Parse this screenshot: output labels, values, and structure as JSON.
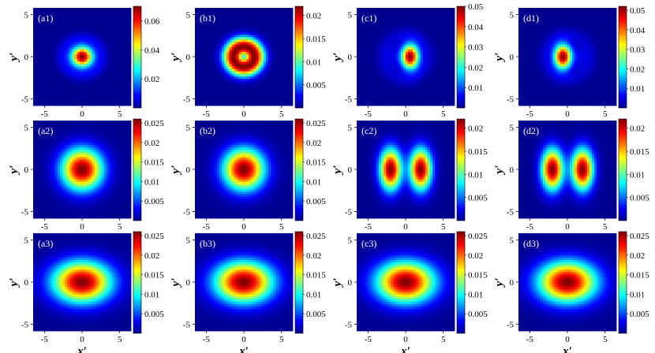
{
  "colormap": [
    "#00008f",
    "#0000ff",
    "#00ffff",
    "#ffff00",
    "#ff0000",
    "#800000"
  ],
  "axis_labels": {
    "x": "x′",
    "y": "y′"
  },
  "chart_data": [
    {
      "id": "a1",
      "label": "(a1)",
      "type": "heatmap",
      "xticks": [
        "-5",
        "0",
        "5"
      ],
      "yticks": [
        "5",
        "0",
        "-5"
      ],
      "xlim": [
        -6.5,
        6.5
      ],
      "ylim": [
        -5.8,
        5.8
      ],
      "colorbar": {
        "min": 0,
        "max": 0.07,
        "ticks": [
          "0.06",
          "0.04",
          "0.02"
        ],
        "tick_values": [
          0.06,
          0.04,
          0.02
        ]
      },
      "blobs": [
        {
          "x": 0,
          "y": 0,
          "sx": 1.0,
          "sy": 0.85,
          "shape": "gauss",
          "amp": 1.0
        },
        {
          "x": 0,
          "y": 0,
          "r0": 2.7,
          "w": 0.6,
          "ry_scale": 0.85,
          "shape": "ring",
          "amp": 0.08
        }
      ]
    },
    {
      "id": "b1",
      "label": "(b1)",
      "type": "heatmap",
      "xticks": [
        "-5",
        "0",
        "5"
      ],
      "yticks": [
        "5",
        "0",
        "-5"
      ],
      "xlim": [
        -6.5,
        6.5
      ],
      "ylim": [
        -5.8,
        5.8
      ],
      "colorbar": {
        "min": 0,
        "max": 0.022,
        "ticks": [
          "0.02",
          "0.015",
          "0.01",
          "0.005"
        ],
        "tick_values": [
          0.02,
          0.015,
          0.01,
          0.005
        ]
      },
      "blobs": [
        {
          "x": 0,
          "y": 0,
          "r0": 1.4,
          "w": 0.95,
          "ry_scale": 0.85,
          "shape": "ring",
          "amp": 1.0
        }
      ]
    },
    {
      "id": "c1",
      "label": "(c1)",
      "type": "heatmap",
      "xticks": [
        "-5",
        "0",
        "5"
      ],
      "yticks": [
        "5",
        "0",
        "-5"
      ],
      "xlim": [
        -6.5,
        6.5
      ],
      "ylim": [
        -5.8,
        5.8
      ],
      "colorbar": {
        "min": 0,
        "max": 0.05,
        "ticks": [
          "0.05",
          "0.04",
          "0.03",
          "0.02",
          "0.01"
        ],
        "tick_values": [
          0.05,
          0.04,
          0.03,
          0.02,
          0.01
        ]
      },
      "blobs": [
        {
          "x": 0.6,
          "y": 0,
          "sx": 0.8,
          "sy": 1.0,
          "shape": "gauss",
          "amp": 1.0
        },
        {
          "x": -1.6,
          "y": 0,
          "sx": 0.7,
          "sy": 0.8,
          "shape": "gauss",
          "amp": 0.07
        },
        {
          "x": 0,
          "y": 0,
          "r0": 2.9,
          "w": 0.7,
          "ry_scale": 0.9,
          "shape": "ring",
          "amp": 0.07
        }
      ]
    },
    {
      "id": "d1",
      "label": "(d1)",
      "type": "heatmap",
      "xticks": [
        "-5",
        "0",
        "5"
      ],
      "yticks": [
        "5",
        "0",
        "-5"
      ],
      "xlim": [
        -6.5,
        6.5
      ],
      "ylim": [
        -5.8,
        5.8
      ],
      "colorbar": {
        "min": 0,
        "max": 0.052,
        "ticks": [
          "0.05",
          "0.04",
          "0.03",
          "0.02",
          "0.01"
        ],
        "tick_values": [
          0.05,
          0.04,
          0.03,
          0.02,
          0.01
        ]
      },
      "blobs": [
        {
          "x": -0.6,
          "y": 0,
          "sx": 0.8,
          "sy": 1.0,
          "shape": "gauss",
          "amp": 1.0
        },
        {
          "x": 1.6,
          "y": 0,
          "sx": 0.7,
          "sy": 0.8,
          "shape": "gauss",
          "amp": 0.07
        },
        {
          "x": 0,
          "y": 0,
          "r0": 2.9,
          "w": 0.7,
          "ry_scale": 0.9,
          "shape": "ring",
          "amp": 0.07
        }
      ]
    },
    {
      "id": "a2",
      "label": "(a2)",
      "type": "heatmap",
      "xticks": [
        "-5",
        "0",
        "5"
      ],
      "yticks": [
        "5",
        "0",
        "-5"
      ],
      "xlim": [
        -6.5,
        6.5
      ],
      "ylim": [
        -5.8,
        5.8
      ],
      "colorbar": {
        "min": 0,
        "max": 0.026,
        "ticks": [
          "0.025",
          "0.02",
          "0.015",
          "0.01",
          "0.005"
        ],
        "tick_values": [
          0.025,
          0.02,
          0.015,
          0.01,
          0.005
        ]
      },
      "blobs": [
        {
          "x": 0,
          "y": 0,
          "sx": 1.9,
          "sy": 1.7,
          "shape": "gauss",
          "amp": 1.0
        }
      ]
    },
    {
      "id": "b2",
      "label": "(b2)",
      "type": "heatmap",
      "xticks": [
        "-5",
        "0",
        "5"
      ],
      "yticks": [
        "5",
        "0",
        "-5"
      ],
      "xlim": [
        -6.5,
        6.5
      ],
      "ylim": [
        -5.8,
        5.8
      ],
      "colorbar": {
        "min": 0,
        "max": 0.026,
        "ticks": [
          "0.025",
          "0.02",
          "0.015",
          "0.01",
          "0.005"
        ],
        "tick_values": [
          0.025,
          0.02,
          0.015,
          0.01,
          0.005
        ]
      },
      "blobs": [
        {
          "x": 0,
          "y": 0,
          "sx": 1.9,
          "sy": 1.7,
          "shape": "gauss",
          "amp": 1.0
        }
      ]
    },
    {
      "id": "c2",
      "label": "(c2)",
      "type": "heatmap",
      "xticks": [
        "-5",
        "0",
        "5"
      ],
      "yticks": [
        "5",
        "0",
        "-5"
      ],
      "xlim": [
        -6.5,
        6.5
      ],
      "ylim": [
        -5.8,
        5.8
      ],
      "colorbar": {
        "min": 0,
        "max": 0.022,
        "ticks": [
          "0.02",
          "0.015",
          "0.01",
          "0.005"
        ],
        "tick_values": [
          0.02,
          0.015,
          0.01,
          0.005
        ]
      },
      "blobs": [
        {
          "x": -2.0,
          "y": 0,
          "sx": 1.0,
          "sy": 1.7,
          "shape": "gauss",
          "amp": 1.0
        },
        {
          "x": 2.0,
          "y": 0,
          "sx": 1.0,
          "sy": 1.7,
          "shape": "gauss",
          "amp": 1.0
        }
      ]
    },
    {
      "id": "d2",
      "label": "(d2)",
      "type": "heatmap",
      "xticks": [
        "-5",
        "0",
        "5"
      ],
      "yticks": [
        "5",
        "0",
        "-5"
      ],
      "xlim": [
        -6.5,
        6.5
      ],
      "ylim": [
        -5.8,
        5.8
      ],
      "colorbar": {
        "min": 0,
        "max": 0.022,
        "ticks": [
          "0.02",
          "0.015",
          "0.01",
          "0.005"
        ],
        "tick_values": [
          0.02,
          0.015,
          0.01,
          0.005
        ]
      },
      "blobs": [
        {
          "x": -2.0,
          "y": 0,
          "sx": 1.0,
          "sy": 1.7,
          "shape": "gauss",
          "amp": 1.0
        },
        {
          "x": 2.0,
          "y": 0,
          "sx": 1.0,
          "sy": 1.7,
          "shape": "gauss",
          "amp": 1.0
        }
      ]
    },
    {
      "id": "a3",
      "label": "(a3)",
      "type": "heatmap",
      "xticks": [
        "-5",
        "0",
        "5"
      ],
      "yticks": [
        "5",
        "0",
        "-5"
      ],
      "xlim": [
        -6.5,
        6.5
      ],
      "ylim": [
        -5.8,
        5.8
      ],
      "colorbar": {
        "min": 0,
        "max": 0.026,
        "ticks": [
          "0.025",
          "0.02",
          "0.015",
          "0.01",
          "0.005"
        ],
        "tick_values": [
          0.025,
          0.02,
          0.015,
          0.01,
          0.005
        ]
      },
      "blobs": [
        {
          "x": 0,
          "y": 0,
          "sx": 2.7,
          "sy": 1.7,
          "shape": "gauss",
          "amp": 1.0
        }
      ]
    },
    {
      "id": "b3",
      "label": "(b3)",
      "type": "heatmap",
      "xticks": [
        "-5",
        "0",
        "5"
      ],
      "yticks": [
        "5",
        "0",
        "-5"
      ],
      "xlim": [
        -6.5,
        6.5
      ],
      "ylim": [
        -5.8,
        5.8
      ],
      "colorbar": {
        "min": 0,
        "max": 0.026,
        "ticks": [
          "0.025",
          "0.02",
          "0.015",
          "0.01",
          "0.005"
        ],
        "tick_values": [
          0.025,
          0.02,
          0.015,
          0.01,
          0.005
        ]
      },
      "blobs": [
        {
          "x": 0,
          "y": 0,
          "sx": 2.7,
          "sy": 1.7,
          "shape": "gauss",
          "amp": 1.0
        }
      ]
    },
    {
      "id": "c3",
      "label": "(c3)",
      "type": "heatmap",
      "xticks": [
        "-5",
        "0",
        "5"
      ],
      "yticks": [
        "5",
        "0",
        "-5"
      ],
      "xlim": [
        -6.5,
        6.5
      ],
      "ylim": [
        -5.8,
        5.8
      ],
      "colorbar": {
        "min": 0,
        "max": 0.026,
        "ticks": [
          "0.025",
          "0.02",
          "0.015",
          "0.01",
          "0.005"
        ],
        "tick_values": [
          0.025,
          0.02,
          0.015,
          0.01,
          0.005
        ]
      },
      "blobs": [
        {
          "x": 0,
          "y": 0,
          "sx": 2.7,
          "sy": 1.7,
          "shape": "gauss",
          "amp": 1.0
        }
      ]
    },
    {
      "id": "d3",
      "label": "(d3)",
      "type": "heatmap",
      "xticks": [
        "-5",
        "0",
        "5"
      ],
      "yticks": [
        "5",
        "0",
        "-5"
      ],
      "xlim": [
        -6.5,
        6.5
      ],
      "ylim": [
        -5.8,
        5.8
      ],
      "colorbar": {
        "min": 0,
        "max": 0.026,
        "ticks": [
          "0.025",
          "0.02",
          "0.015",
          "0.01",
          "0.005"
        ],
        "tick_values": [
          0.025,
          0.02,
          0.015,
          0.01,
          0.005
        ]
      },
      "blobs": [
        {
          "x": 0,
          "y": 0,
          "sx": 2.7,
          "sy": 1.7,
          "shape": "gauss",
          "amp": 1.0
        }
      ]
    }
  ]
}
